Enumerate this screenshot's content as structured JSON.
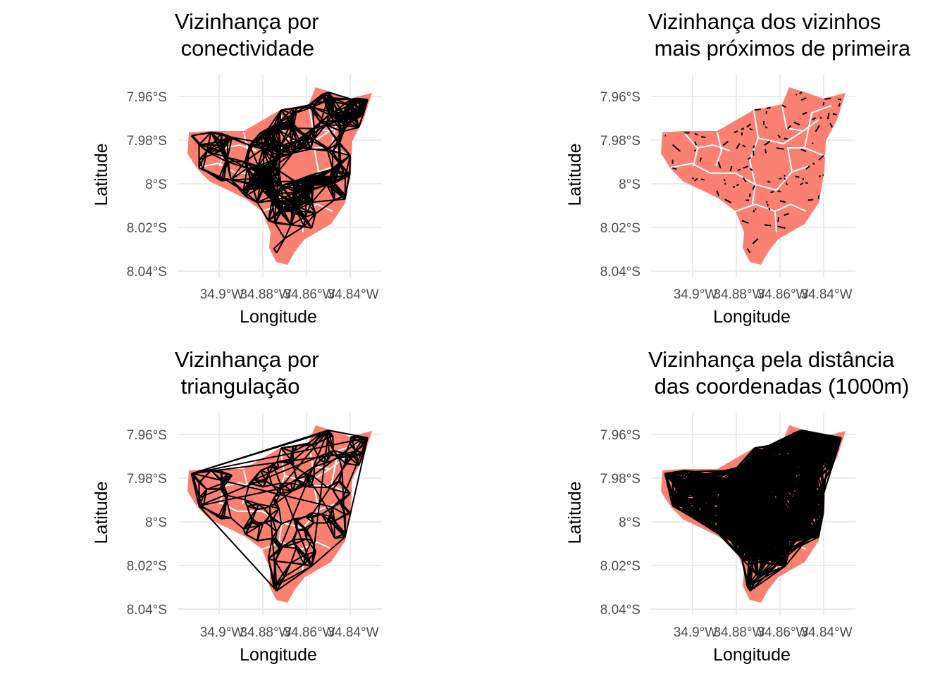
{
  "colors": {
    "map_fill": "#fa8072",
    "region_border": "#ffffff",
    "edges": "#000000",
    "grid": "#ebebeb",
    "tick_text": "#4d4d4d"
  },
  "chart_data": [
    {
      "type": "map",
      "title_lines": [
        "Vizinhança por",
        " conectividade"
      ],
      "xlabel": "Longitude",
      "ylabel": "Latitude",
      "x_ticks": [
        "34.9°W",
        "34.88°W",
        "34.86°W",
        "34.84°W"
      ],
      "y_ticks": [
        "7.96°S",
        "7.98°S",
        "8°S",
        "8.02°S",
        "8.04°S"
      ],
      "neighborhood_method": "contiguity"
    },
    {
      "type": "map",
      "title_lines": [
        "Vizinhança dos vizinhos",
        " mais próximos de primeira"
      ],
      "xlabel": "Longitude",
      "ylabel": "Latitude",
      "x_ticks": [
        "34.9°W",
        "34.88°W",
        "34.86°W",
        "34.84°W"
      ],
      "y_ticks": [
        "7.96°S",
        "7.98°S",
        "8°S",
        "8.02°S",
        "8.04°S"
      ],
      "neighborhood_method": "nearest"
    },
    {
      "type": "map",
      "title_lines": [
        "Vizinhança por",
        " triangulação"
      ],
      "xlabel": "Longitude",
      "ylabel": "Latitude",
      "x_ticks": [
        "34.9°W",
        "34.88°W",
        "34.86°W",
        "34.84°W"
      ],
      "y_ticks": [
        "7.96°S",
        "7.98°S",
        "8°S",
        "8.02°S",
        "8.04°S"
      ],
      "neighborhood_method": "triangulation"
    },
    {
      "type": "map",
      "title_lines": [
        "Vizinhança pela distância",
        " das coordenadas (1000m)"
      ],
      "xlabel": "Longitude",
      "ylabel": "Latitude",
      "x_ticks": [
        "34.9°W",
        "34.88°W",
        "34.86°W",
        "34.84°W"
      ],
      "y_ticks": [
        "7.96°S",
        "7.98°S",
        "8°S",
        "8.02°S",
        "8.04°S"
      ],
      "neighborhood_method": "distance"
    }
  ]
}
